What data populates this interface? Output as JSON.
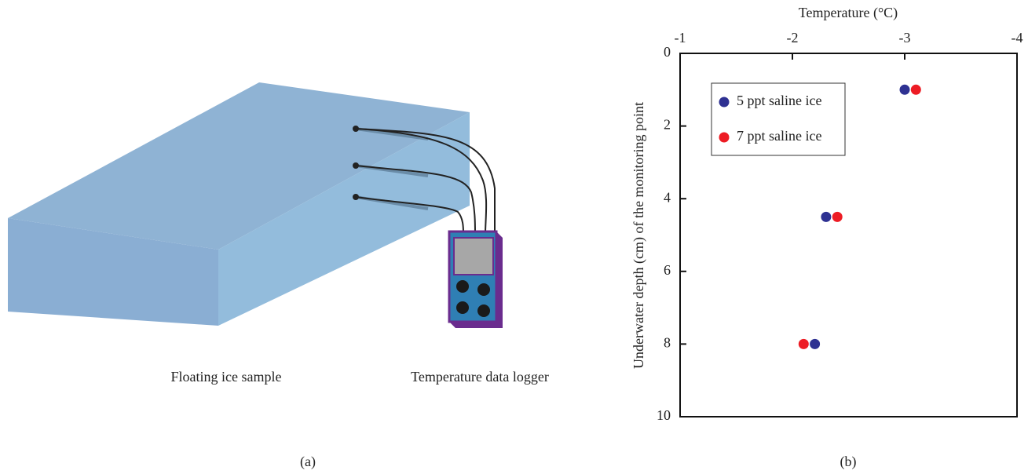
{
  "diagram": {
    "labels": [
      "Floating ice sample",
      "Temperature data logger"
    ],
    "caption": "(a)"
  },
  "chart_data": {
    "type": "scatter",
    "x_label": "Temperature (°C)",
    "y_label": "Underwater depth (cm) of the monitoring point",
    "caption": "(b)",
    "xlim": [
      -1,
      -4
    ],
    "xticks": [
      -1,
      -2,
      -3,
      -4
    ],
    "ylim": [
      10,
      0
    ],
    "yticks": [
      0,
      2,
      4,
      6,
      8,
      10
    ],
    "legend": "top-left",
    "series": [
      {
        "name": "5 ppt saline ice",
        "color": "#2e3192",
        "x": [
          -3.0,
          -2.3,
          -2.2
        ],
        "values": [
          1,
          4.5,
          8
        ]
      },
      {
        "name": "7 ppt saline ice",
        "color": "#ed1c24",
        "x": [
          -3.1,
          -2.4,
          -2.1
        ],
        "values": [
          1,
          4.5,
          8
        ]
      }
    ]
  }
}
